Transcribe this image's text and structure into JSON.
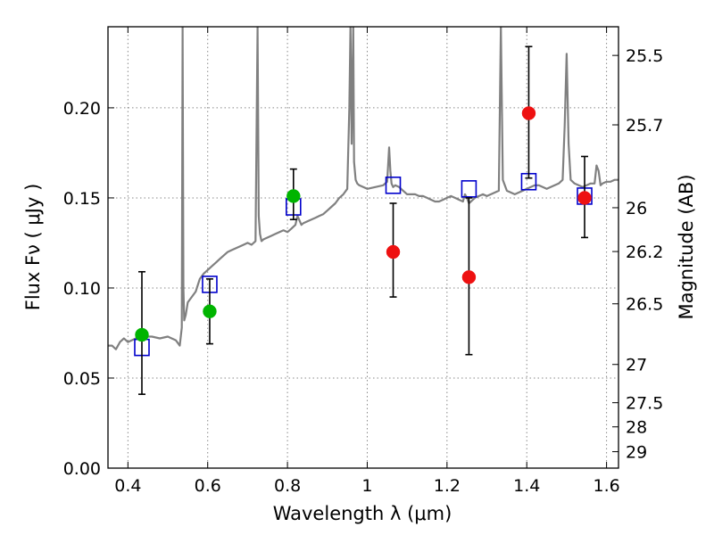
{
  "chart_data": {
    "type": "scatter",
    "title": "",
    "xlabel": "Wavelength  λ (μm)",
    "ylabel": "Flux  Fν  ( μJy )",
    "ylabel_right": "Magnitude (AB)",
    "xlim": [
      0.35,
      1.63
    ],
    "ylim": [
      0.0,
      0.245
    ],
    "grid": true,
    "legend": "none",
    "x_ticks": [
      0.4,
      0.6,
      0.8,
      1.0,
      1.2,
      1.4,
      1.6
    ],
    "x_tick_labels": [
      "0.4",
      "0.6",
      "0.8",
      "1",
      "1.2",
      "1.4",
      "1.6"
    ],
    "y_ticks": [
      0.0,
      0.05,
      0.1,
      0.15,
      0.2
    ],
    "y_tick_labels": [
      "0.00",
      "0.05",
      "0.10",
      "0.15",
      "0.20"
    ],
    "right_axis": {
      "scale": "AB magnitude",
      "tick_labels": [
        "25.5",
        "25.7",
        "26",
        "26.2",
        "26.5",
        "27",
        "27.5",
        "28",
        "29"
      ]
    },
    "colors": {
      "model": "#808080",
      "model_photometry": "#0000cc",
      "green_points": "#00b400",
      "red_points": "#ee1111",
      "errorbar": "#000000",
      "grid": "#888888"
    },
    "series": [
      {
        "kind": "line",
        "color": "#808080",
        "x": [
          0.35,
          0.36,
          0.37,
          0.38,
          0.39,
          0.4,
          0.42,
          0.44,
          0.46,
          0.48,
          0.5,
          0.52,
          0.53,
          0.535,
          0.537,
          0.539,
          0.541,
          0.545,
          0.55,
          0.56,
          0.57,
          0.58,
          0.59,
          0.6,
          0.61,
          0.62,
          0.63,
          0.64,
          0.65,
          0.66,
          0.67,
          0.68,
          0.69,
          0.7,
          0.71,
          0.72,
          0.725,
          0.728,
          0.731,
          0.735,
          0.74,
          0.75,
          0.76,
          0.77,
          0.78,
          0.79,
          0.8,
          0.81,
          0.82,
          0.825,
          0.835,
          0.84,
          0.85,
          0.86,
          0.87,
          0.88,
          0.89,
          0.9,
          0.91,
          0.92,
          0.93,
          0.94,
          0.95,
          0.955,
          0.958,
          0.961,
          0.965,
          0.967,
          0.971,
          0.975,
          0.98,
          0.99,
          1.0,
          1.02,
          1.04,
          1.05,
          1.055,
          1.058,
          1.061,
          1.065,
          1.07,
          1.08,
          1.09,
          1.1,
          1.11,
          1.12,
          1.13,
          1.14,
          1.15,
          1.16,
          1.17,
          1.18,
          1.19,
          1.2,
          1.21,
          1.22,
          1.23,
          1.24,
          1.245,
          1.25,
          1.255,
          1.26,
          1.27,
          1.28,
          1.29,
          1.3,
          1.31,
          1.32,
          1.33,
          1.335,
          1.34,
          1.35,
          1.36,
          1.37,
          1.38,
          1.39,
          1.4,
          1.41,
          1.42,
          1.43,
          1.44,
          1.45,
          1.46,
          1.47,
          1.48,
          1.49,
          1.495,
          1.5,
          1.505,
          1.51,
          1.52,
          1.53,
          1.54,
          1.55,
          1.56,
          1.57,
          1.575,
          1.58,
          1.585,
          1.59,
          1.6,
          1.61,
          1.62,
          1.63
        ],
        "y": [
          0.068,
          0.068,
          0.066,
          0.07,
          0.072,
          0.07,
          0.072,
          0.073,
          0.073,
          0.072,
          0.073,
          0.071,
          0.068,
          0.078,
          0.245,
          0.1,
          0.082,
          0.085,
          0.092,
          0.095,
          0.098,
          0.105,
          0.108,
          0.11,
          0.112,
          0.114,
          0.116,
          0.118,
          0.12,
          0.121,
          0.122,
          0.123,
          0.124,
          0.125,
          0.124,
          0.126,
          0.245,
          0.14,
          0.13,
          0.126,
          0.127,
          0.128,
          0.129,
          0.13,
          0.131,
          0.132,
          0.131,
          0.133,
          0.135,
          0.14,
          0.135,
          0.136,
          0.137,
          0.138,
          0.139,
          0.14,
          0.141,
          0.143,
          0.145,
          0.147,
          0.15,
          0.152,
          0.155,
          0.2,
          0.245,
          0.18,
          0.245,
          0.17,
          0.16,
          0.158,
          0.157,
          0.156,
          0.155,
          0.156,
          0.157,
          0.159,
          0.178,
          0.165,
          0.158,
          0.156,
          0.157,
          0.156,
          0.154,
          0.152,
          0.152,
          0.152,
          0.151,
          0.151,
          0.15,
          0.149,
          0.148,
          0.148,
          0.149,
          0.15,
          0.151,
          0.15,
          0.149,
          0.148,
          0.152,
          0.15,
          0.147,
          0.148,
          0.15,
          0.151,
          0.152,
          0.151,
          0.152,
          0.153,
          0.154,
          0.245,
          0.16,
          0.154,
          0.153,
          0.152,
          0.153,
          0.154,
          0.155,
          0.156,
          0.157,
          0.157,
          0.156,
          0.155,
          0.156,
          0.157,
          0.158,
          0.16,
          0.19,
          0.23,
          0.18,
          0.16,
          0.158,
          0.157,
          0.156,
          0.157,
          0.158,
          0.158,
          0.168,
          0.165,
          0.157,
          0.158,
          0.159,
          0.159,
          0.16,
          0.16
        ]
      },
      {
        "kind": "open-square",
        "color": "#0000cc",
        "x": [
          0.435,
          0.605,
          0.815,
          1.065,
          1.255,
          1.405,
          1.545
        ],
        "y": [
          0.067,
          0.102,
          0.145,
          0.157,
          0.155,
          0.159,
          0.151
        ]
      },
      {
        "kind": "filled-circle",
        "color": "#00b400",
        "x": [
          0.435,
          0.605,
          0.815
        ],
        "y": [
          0.074,
          0.087,
          0.151
        ],
        "y_err_low": [
          0.041,
          0.069,
          0.138
        ],
        "y_err_high": [
          0.109,
          0.105,
          0.166
        ]
      },
      {
        "kind": "filled-circle",
        "color": "#ee1111",
        "x": [
          1.065,
          1.255,
          1.405,
          1.545
        ],
        "y": [
          0.12,
          0.106,
          0.197,
          0.15
        ],
        "y_err_low": [
          0.095,
          0.063,
          0.161,
          0.128
        ],
        "y_err_high": [
          0.147,
          0.15,
          0.234,
          0.173
        ]
      }
    ]
  }
}
